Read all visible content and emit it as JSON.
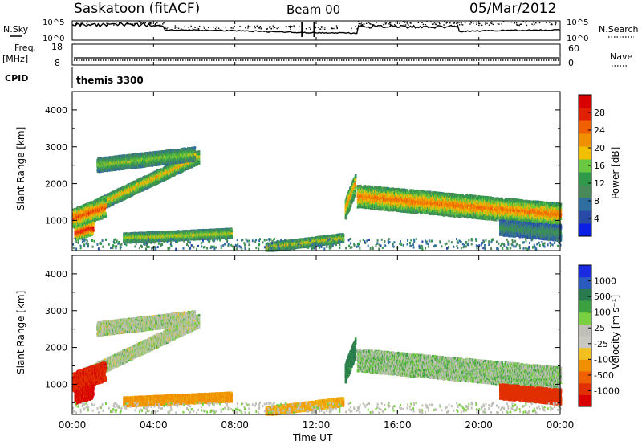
{
  "header": {
    "site": "Saskatoon (fitACF)",
    "beam": "Beam 00",
    "date": "05/Mar/2012"
  },
  "params": {
    "nsky_label": "N.Sky",
    "nsearch_label": "N.Search",
    "noise_ticks": [
      "10^5",
      "10^0"
    ],
    "freq_label": "Freq.",
    "freq_unit": "[MHz]",
    "freq_ticks": [
      "18",
      "8"
    ],
    "nave_label": "Nave",
    "nave_ticks": [
      "60",
      "0"
    ],
    "cpid_label": "CPID",
    "cpid_value": "themis 3300"
  },
  "colors": {
    "power": [
      "#0a1ee6",
      "#2a4aa8",
      "#2f6fa0",
      "#4a8a5a",
      "#2f9a4a",
      "#6ac840",
      "#f0c000",
      "#f09000",
      "#f06000",
      "#e02000",
      "#d80000"
    ],
    "velocity": [
      "#1a2ae0",
      "#2a5ac0",
      "#2a7a50",
      "#3aa040",
      "#7ad040",
      "#c0c0b8",
      "#c8c8c0",
      "#f0c020",
      "#f09000",
      "#f06000",
      "#e03000",
      "#d80000"
    ],
    "accent_gray": "#c0bdb5"
  },
  "chart_data": [
    {
      "type": "heatmap",
      "name": "power",
      "xlabel": "",
      "ylabel": "Slant Range [km]",
      "xlim": [
        0,
        24
      ],
      "ylim": [
        180,
        4500
      ],
      "yticks": [
        "4000",
        "3000",
        "2000",
        "1000"
      ],
      "colorbar": {
        "label": "Power [dB]",
        "ticks": [
          "28",
          "24",
          "20",
          "16",
          "12",
          "8",
          "4"
        ],
        "range": [
          0,
          30
        ]
      }
    },
    {
      "type": "heatmap",
      "name": "velocity",
      "xlabel": "Time UT",
      "ylabel": "Slant Range [km]",
      "xlim": [
        0,
        24
      ],
      "ylim": [
        180,
        4500
      ],
      "xticks": [
        "00:00",
        "04:00",
        "08:00",
        "12:00",
        "16:00",
        "20:00",
        "00:00"
      ],
      "yticks": [
        "4000",
        "3000",
        "2000",
        "1000"
      ],
      "colorbar": {
        "label": "Velocity [m s⁻¹]",
        "ticks": [
          "1000",
          "500",
          "100",
          "25",
          "-25",
          "-100",
          "-500",
          "-1000"
        ]
      }
    }
  ],
  "bands": [
    {
      "name": "eastward-rising-band",
      "t0": 0.6,
      "t1": 6.2,
      "r0": 1250,
      "r1": 2720,
      "w": 170,
      "p": 19,
      "v": 0
    },
    {
      "name": "upper-band",
      "t0": 1.2,
      "t1": 6.0,
      "r0": 2500,
      "r1": 2800,
      "w": 180,
      "p": 15,
      "v": 0
    },
    {
      "name": "near-range-evening",
      "t0": 0.0,
      "t1": 1.6,
      "r0": 1050,
      "r1": 1350,
      "w": 260,
      "p": 24,
      "v": -600
    },
    {
      "name": "near-range-2",
      "t0": 0.1,
      "t1": 1.0,
      "r0": 650,
      "r1": 800,
      "w": 180,
      "p": 27,
      "v": -800
    },
    {
      "name": "low-band-dawn",
      "t0": 2.5,
      "t1": 7.8,
      "r0": 520,
      "r1": 650,
      "w": 120,
      "p": 17,
      "v": -80
    },
    {
      "name": "low-band-noon",
      "t0": 9.5,
      "t1": 13.3,
      "r0": 260,
      "r1": 520,
      "w": 110,
      "p": 18,
      "v": -60
    },
    {
      "name": "afternoon-blob",
      "t0": 13.4,
      "t1": 13.9,
      "r0": 1300,
      "r1": 2000,
      "w": 260,
      "p": 20,
      "v": 80
    },
    {
      "name": "main-afternoon-band",
      "t0": 14.0,
      "t1": 24.0,
      "r0": 1650,
      "r1": 1150,
      "w": 300,
      "p": 22,
      "v": 10
    },
    {
      "name": "late-low",
      "t0": 21.0,
      "t1": 24.0,
      "r0": 800,
      "r1": 650,
      "w": 200,
      "p": 10,
      "v": -500
    }
  ]
}
